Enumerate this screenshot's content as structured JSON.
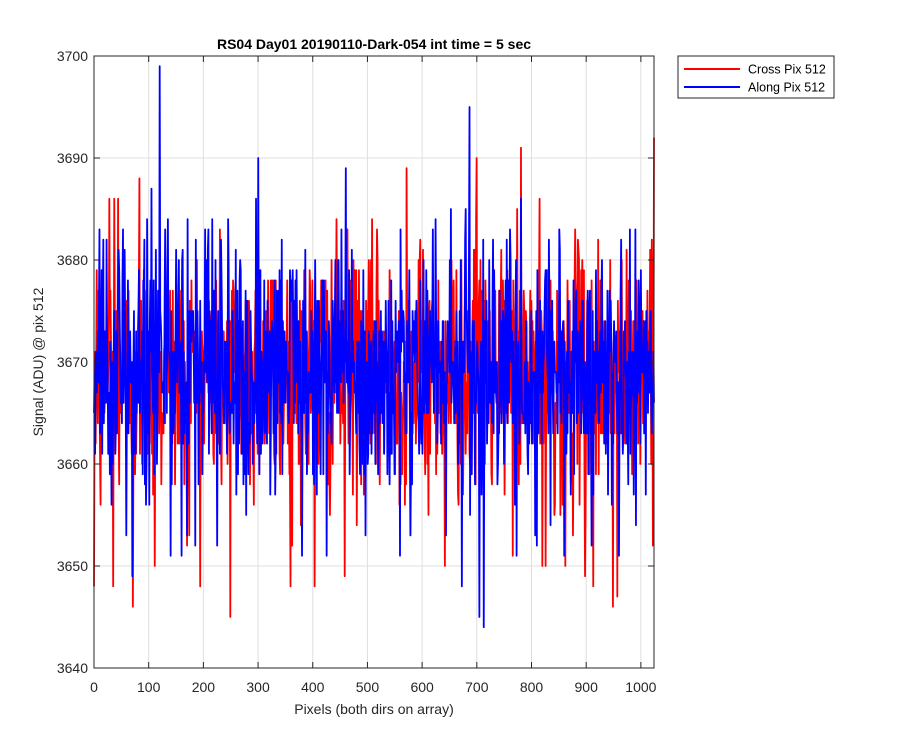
{
  "chart_data": {
    "type": "line",
    "title": "RS04 Day01 20190110-Dark-054 int time = 5 sec",
    "xlabel": "Pixels (both dirs on array)",
    "ylabel": "Signal (ADU) @ pix 512",
    "xlim": [
      0,
      1024
    ],
    "ylim": [
      3640,
      3700
    ],
    "xticks": [
      0,
      100,
      200,
      300,
      400,
      500,
      600,
      700,
      800,
      900,
      1000
    ],
    "yticks": [
      3640,
      3650,
      3660,
      3670,
      3680,
      3690,
      3700
    ],
    "grid": true,
    "legend_position": "outside top-right",
    "series": [
      {
        "name": "Cross Pix 512",
        "color": "#ff0000",
        "mean": 3669,
        "min": 3645,
        "max": 3692,
        "n_points": 1024,
        "points": [
          [
            0,
            3648
          ],
          [
            5,
            3679
          ],
          [
            12,
            3656
          ],
          [
            28,
            3686
          ],
          [
            35,
            3648
          ],
          [
            37,
            3686
          ],
          [
            44,
            3686
          ],
          [
            71,
            3646
          ],
          [
            83,
            3688
          ],
          [
            111,
            3650
          ],
          [
            170,
            3652
          ],
          [
            249,
            3645
          ],
          [
            362,
            3652
          ],
          [
            403,
            3648
          ],
          [
            458,
            3649
          ],
          [
            572,
            3689
          ],
          [
            642,
            3650
          ],
          [
            700,
            3690
          ],
          [
            781,
            3691
          ],
          [
            820,
            3650
          ],
          [
            826,
            3650
          ],
          [
            862,
            3650
          ],
          [
            898,
            3649
          ],
          [
            913,
            3648
          ],
          [
            949,
            3646
          ],
          [
            957,
            3647
          ],
          [
            1024,
            3692
          ],
          [
            1020,
            3682
          ]
        ]
      },
      {
        "name": "Along Pix 512",
        "color": "#0000ff",
        "mean": 3669,
        "min": 3644,
        "max": 3699,
        "n_points": 1024,
        "points": [
          [
            0,
            3665
          ],
          [
            10,
            3683
          ],
          [
            70,
            3649
          ],
          [
            105,
            3687
          ],
          [
            120,
            3699
          ],
          [
            140,
            3651
          ],
          [
            160,
            3651
          ],
          [
            185,
            3652
          ],
          [
            225,
            3652
          ],
          [
            300,
            3690
          ],
          [
            380,
            3651
          ],
          [
            460,
            3689
          ],
          [
            560,
            3651
          ],
          [
            620,
            3683
          ],
          [
            673,
            3648
          ],
          [
            687,
            3695
          ],
          [
            705,
            3645
          ],
          [
            713,
            3644
          ],
          [
            730,
            3682
          ],
          [
            773,
            3651
          ],
          [
            810,
            3652
          ],
          [
            860,
            3651
          ],
          [
            910,
            3652
          ],
          [
            960,
            3651
          ],
          [
            1020,
            3663
          ]
        ]
      }
    ],
    "axis_color": "#262626",
    "grid_color": "#dfdfdf"
  }
}
